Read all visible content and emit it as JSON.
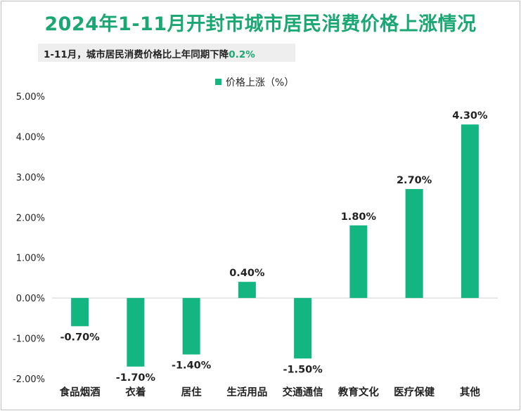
{
  "title": "2024年1-11月开封市城市居民消费价格上涨情况",
  "subtitle": {
    "prefix": "1-11月，城市居民消费价格比上年同期下降",
    "highlight": "0.2%"
  },
  "colors": {
    "title": "#1aa773",
    "bar": "#13b680",
    "highlight": "#1aa773",
    "text": "#222222"
  },
  "chart_data": {
    "type": "bar",
    "legend": [
      "价格上涨（%）"
    ],
    "categories": [
      "食品烟酒",
      "衣着",
      "居住",
      "生活用品",
      "交通通信",
      "教育文化",
      "医疗保健",
      "其他"
    ],
    "values": [
      -0.7,
      -1.7,
      -1.4,
      0.4,
      -1.5,
      1.8,
      2.7,
      4.3
    ],
    "value_labels": [
      "-0.70%",
      "-1.70%",
      "-1.40%",
      "0.40%",
      "-1.50%",
      "1.80%",
      "2.70%",
      "4.30%"
    ],
    "y_ticks": [
      5,
      4,
      3,
      2,
      1,
      0,
      -1,
      -2
    ],
    "y_tick_labels": [
      "5.00%",
      "4.00%",
      "3.00%",
      "2.00%",
      "1.00%",
      "0.00%",
      "-1.00%",
      "-2.00%"
    ],
    "ylim": [
      -2,
      5
    ],
    "grid": false
  }
}
